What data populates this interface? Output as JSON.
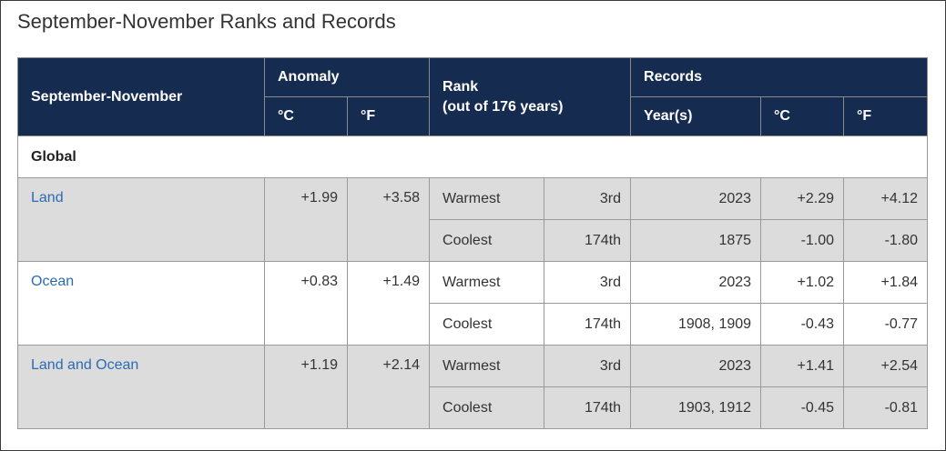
{
  "page": {
    "title": "September-November Ranks and Records"
  },
  "table": {
    "header": {
      "period_label": "September-November",
      "anomaly_label": "Anomaly",
      "rank_label_line1": "Rank",
      "rank_label_line2": "(out of 176 years)",
      "records_label": "Records",
      "unit_c": "°C",
      "unit_f": "°F",
      "years_label": "Year(s)"
    },
    "group_label": "Global",
    "regions": [
      {
        "name": "Land",
        "anomaly_c": "+1.99",
        "anomaly_f": "+3.58",
        "warmest": {
          "label": "Warmest",
          "rank": "3rd",
          "years": "2023",
          "c": "+2.29",
          "f": "+4.12"
        },
        "coolest": {
          "label": "Coolest",
          "rank": "174th",
          "years": "1875",
          "c": "-1.00",
          "f": "-1.80"
        }
      },
      {
        "name": "Ocean",
        "anomaly_c": "+0.83",
        "anomaly_f": "+1.49",
        "warmest": {
          "label": "Warmest",
          "rank": "3rd",
          "years": "2023",
          "c": "+1.02",
          "f": "+1.84"
        },
        "coolest": {
          "label": "Coolest",
          "rank": "174th",
          "years": "1908, 1909",
          "c": "-0.43",
          "f": "-0.77"
        }
      },
      {
        "name": "Land and Ocean",
        "anomaly_c": "+1.19",
        "anomaly_f": "+2.14",
        "warmest": {
          "label": "Warmest",
          "rank": "3rd",
          "years": "2023",
          "c": "+1.41",
          "f": "+2.54"
        },
        "coolest": {
          "label": "Coolest",
          "rank": "174th",
          "years": "1903, 1912",
          "c": "-0.45",
          "f": "-0.81"
        }
      }
    ]
  },
  "colors": {
    "header_bg": "#162b50",
    "shaded_row_bg": "#dcdcdc",
    "link": "#2a6bb5"
  }
}
